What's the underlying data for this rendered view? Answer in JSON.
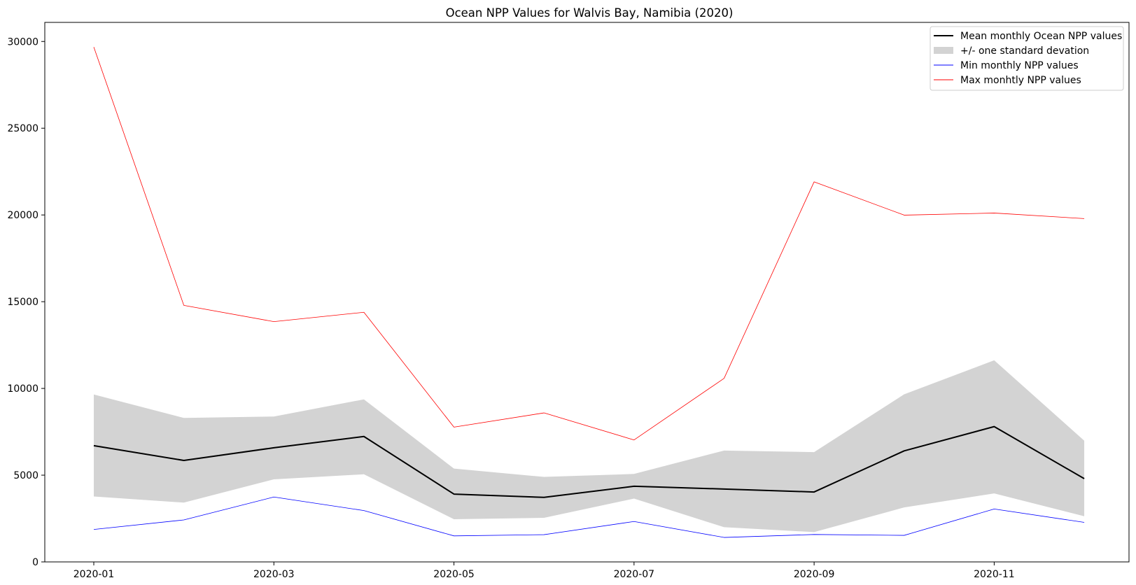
{
  "chart_data": {
    "type": "line",
    "title": "Ocean NPP Values for Walvis Bay, Namibia (2020)",
    "xlabel": "",
    "ylabel": "",
    "x": [
      "2020-01",
      "2020-02",
      "2020-03",
      "2020-04",
      "2020-05",
      "2020-06",
      "2020-07",
      "2020-08",
      "2020-09",
      "2020-10",
      "2020-11",
      "2020-12"
    ],
    "x_tick_labels": [
      "2020-01",
      "2020-03",
      "2020-05",
      "2020-07",
      "2020-09",
      "2020-11"
    ],
    "y_tick_labels": [
      "0",
      "5000",
      "10000",
      "15000",
      "20000",
      "25000",
      "30000"
    ],
    "ylim": [
      0,
      31100
    ],
    "grid": false,
    "legend_position": "top-right",
    "series": [
      {
        "name": "Mean monthly Ocean NPP values",
        "kind": "line",
        "color": "#000000",
        "values": [
          6700,
          5850,
          6580,
          7230,
          3910,
          3720,
          4360,
          4200,
          4030,
          6400,
          7800,
          4800
        ]
      },
      {
        "name": "+/- one standard devation",
        "kind": "band",
        "color": "#d3d3d3",
        "lower": [
          3770,
          3420,
          4760,
          5050,
          2460,
          2540,
          3650,
          2000,
          1720,
          3140,
          3950,
          2630
        ],
        "upper": [
          9650,
          8300,
          8380,
          9370,
          5380,
          4900,
          5070,
          6420,
          6330,
          9660,
          11620,
          6990
        ]
      },
      {
        "name": "Min monthly NPP values",
        "kind": "line",
        "color": "#0000ff",
        "values": [
          1870,
          2420,
          3740,
          2960,
          1500,
          1570,
          2330,
          1410,
          1580,
          1530,
          3050,
          2280
        ]
      },
      {
        "name": "Max monhtly NPP values",
        "kind": "line",
        "color": "#ff0000",
        "values": [
          29680,
          14790,
          13850,
          14390,
          7770,
          8590,
          7030,
          10580,
          21910,
          19990,
          20110,
          19790
        ]
      }
    ]
  }
}
